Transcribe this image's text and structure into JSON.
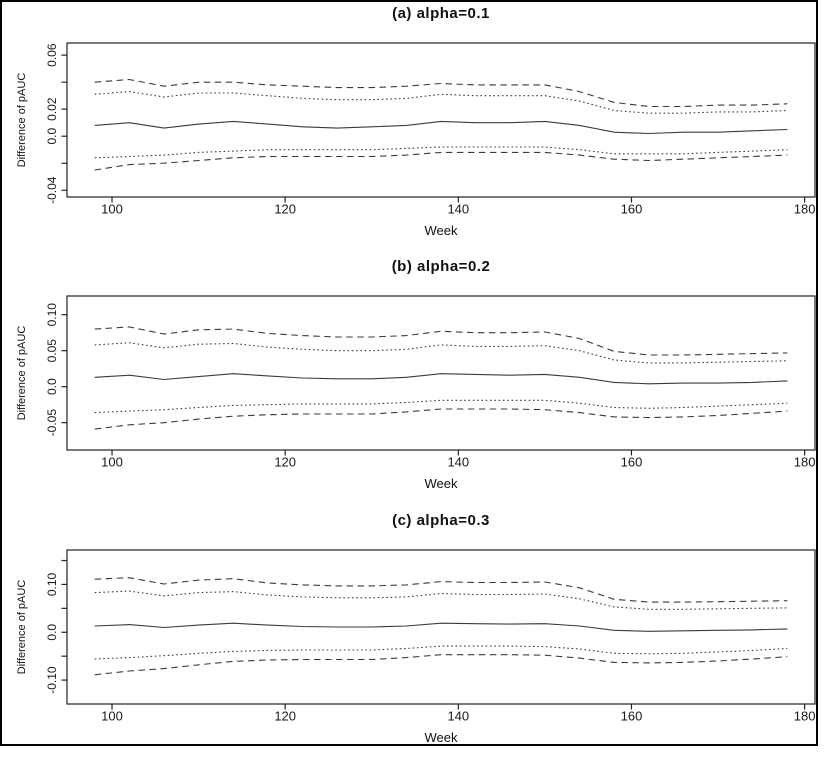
{
  "window": {
    "background": "#ffffff",
    "border_color": "#000000"
  },
  "figure": {
    "text_color": "#1a1a1a",
    "curve_color": "#3b3b3b",
    "axis_color": "#222222"
  },
  "chart_data": [
    {
      "type": "line",
      "title": "(a) alpha=0.1",
      "xlabel": "Week",
      "ylabel": "Difference of pAUC",
      "xlim": [
        94.8,
        181.2
      ],
      "ylim": [
        -0.045,
        0.069
      ],
      "xticks": [
        {
          "v": 100,
          "label": "100"
        },
        {
          "v": 120,
          "label": "120"
        },
        {
          "v": 140,
          "label": "140"
        },
        {
          "v": 160,
          "label": "160"
        },
        {
          "v": 180,
          "label": "180"
        }
      ],
      "yticks": [
        {
          "v": 0.06,
          "label": "0.06"
        },
        {
          "v": 0.04,
          "label": ""
        },
        {
          "v": 0.02,
          "label": "0.02"
        },
        {
          "v": 0.0,
          "label": "0.0"
        },
        {
          "v": -0.02,
          "label": ""
        },
        {
          "v": -0.04,
          "label": "-0.04"
        }
      ],
      "grid": false,
      "legend": "none",
      "x": [
        98,
        102,
        106,
        110,
        114,
        118,
        122,
        126,
        130,
        134,
        138,
        142,
        146,
        150,
        154,
        158,
        162,
        166,
        170,
        174,
        178
      ],
      "series": [
        {
          "name": "upper-dashed-band",
          "style": "dashed",
          "values": [
            0.04,
            0.042,
            0.037,
            0.04,
            0.04,
            0.038,
            0.037,
            0.036,
            0.036,
            0.037,
            0.039,
            0.038,
            0.038,
            0.038,
            0.033,
            0.025,
            0.022,
            0.022,
            0.023,
            0.023,
            0.024
          ]
        },
        {
          "name": "upper-dotted-band",
          "style": "dotted",
          "values": [
            0.031,
            0.033,
            0.029,
            0.032,
            0.032,
            0.03,
            0.028,
            0.027,
            0.027,
            0.028,
            0.031,
            0.03,
            0.03,
            0.03,
            0.026,
            0.019,
            0.017,
            0.017,
            0.018,
            0.018,
            0.019
          ]
        },
        {
          "name": "estimate",
          "style": "solid",
          "values": [
            0.008,
            0.01,
            0.006,
            0.009,
            0.011,
            0.009,
            0.007,
            0.006,
            0.007,
            0.008,
            0.011,
            0.01,
            0.01,
            0.011,
            0.008,
            0.003,
            0.002,
            0.003,
            0.003,
            0.004,
            0.005
          ]
        },
        {
          "name": "lower-dotted-band",
          "style": "dotted",
          "values": [
            -0.016,
            -0.015,
            -0.014,
            -0.012,
            -0.011,
            -0.01,
            -0.01,
            -0.01,
            -0.01,
            -0.009,
            -0.008,
            -0.008,
            -0.008,
            -0.008,
            -0.01,
            -0.013,
            -0.013,
            -0.013,
            -0.012,
            -0.011,
            -0.01
          ]
        },
        {
          "name": "lower-dashed-band",
          "style": "dashed",
          "values": [
            -0.025,
            -0.021,
            -0.02,
            -0.018,
            -0.016,
            -0.015,
            -0.015,
            -0.015,
            -0.015,
            -0.014,
            -0.012,
            -0.012,
            -0.012,
            -0.012,
            -0.014,
            -0.017,
            -0.018,
            -0.017,
            -0.016,
            -0.015,
            -0.014
          ]
        }
      ]
    },
    {
      "type": "line",
      "title": "(b) alpha=0.2",
      "xlabel": "Week",
      "ylabel": "Difference of pAUC",
      "xlim": [
        94.8,
        181.2
      ],
      "ylim": [
        -0.088,
        0.126
      ],
      "xticks": [
        {
          "v": 100,
          "label": "100"
        },
        {
          "v": 120,
          "label": "120"
        },
        {
          "v": 140,
          "label": "140"
        },
        {
          "v": 160,
          "label": "160"
        },
        {
          "v": 180,
          "label": "180"
        }
      ],
      "yticks": [
        {
          "v": 0.1,
          "label": "0.10"
        },
        {
          "v": 0.05,
          "label": "0.05"
        },
        {
          "v": 0.0,
          "label": "0.0"
        },
        {
          "v": -0.05,
          "label": "-0.05"
        }
      ],
      "grid": false,
      "legend": "none",
      "x": [
        98,
        102,
        106,
        110,
        114,
        118,
        122,
        126,
        130,
        134,
        138,
        142,
        146,
        150,
        154,
        158,
        162,
        166,
        170,
        174,
        178
      ],
      "series": [
        {
          "name": "upper-dashed-band",
          "style": "dashed",
          "values": [
            0.08,
            0.083,
            0.073,
            0.079,
            0.08,
            0.074,
            0.071,
            0.069,
            0.069,
            0.071,
            0.077,
            0.075,
            0.075,
            0.076,
            0.067,
            0.049,
            0.044,
            0.044,
            0.045,
            0.046,
            0.047
          ]
        },
        {
          "name": "upper-dotted-band",
          "style": "dotted",
          "values": [
            0.058,
            0.061,
            0.054,
            0.059,
            0.06,
            0.055,
            0.052,
            0.05,
            0.05,
            0.052,
            0.058,
            0.056,
            0.056,
            0.057,
            0.05,
            0.037,
            0.033,
            0.033,
            0.034,
            0.035,
            0.036
          ]
        },
        {
          "name": "estimate",
          "style": "solid",
          "values": [
            0.013,
            0.016,
            0.01,
            0.014,
            0.018,
            0.015,
            0.012,
            0.011,
            0.011,
            0.013,
            0.018,
            0.017,
            0.016,
            0.017,
            0.013,
            0.006,
            0.004,
            0.005,
            0.005,
            0.006,
            0.008
          ]
        },
        {
          "name": "lower-dotted-band",
          "style": "dotted",
          "values": [
            -0.036,
            -0.034,
            -0.032,
            -0.029,
            -0.026,
            -0.025,
            -0.024,
            -0.024,
            -0.024,
            -0.022,
            -0.019,
            -0.019,
            -0.019,
            -0.019,
            -0.023,
            -0.029,
            -0.03,
            -0.029,
            -0.027,
            -0.025,
            -0.023
          ]
        },
        {
          "name": "lower-dashed-band",
          "style": "dashed",
          "values": [
            -0.059,
            -0.053,
            -0.05,
            -0.045,
            -0.041,
            -0.039,
            -0.038,
            -0.038,
            -0.038,
            -0.035,
            -0.031,
            -0.031,
            -0.031,
            -0.032,
            -0.036,
            -0.042,
            -0.043,
            -0.042,
            -0.04,
            -0.037,
            -0.034
          ]
        }
      ]
    },
    {
      "type": "line",
      "title": "(c) alpha=0.3",
      "xlabel": "Week",
      "ylabel": "Difference of pAUC",
      "xlim": [
        94.8,
        181.2
      ],
      "ylim": [
        -0.15,
        0.172
      ],
      "xticks": [
        {
          "v": 100,
          "label": "100"
        },
        {
          "v": 120,
          "label": "120"
        },
        {
          "v": 140,
          "label": "140"
        },
        {
          "v": 160,
          "label": "160"
        },
        {
          "v": 180,
          "label": "180"
        }
      ],
      "yticks": [
        {
          "v": 0.15,
          "label": ""
        },
        {
          "v": 0.1,
          "label": "0.10"
        },
        {
          "v": 0.05,
          "label": ""
        },
        {
          "v": 0.0,
          "label": "0.0"
        },
        {
          "v": -0.05,
          "label": ""
        },
        {
          "v": -0.1,
          "label": "-0.10"
        }
      ],
      "grid": false,
      "legend": "none",
      "x": [
        98,
        102,
        106,
        110,
        114,
        118,
        122,
        126,
        130,
        134,
        138,
        142,
        146,
        150,
        154,
        158,
        162,
        166,
        170,
        174,
        178
      ],
      "series": [
        {
          "name": "upper-dashed-band",
          "style": "dashed",
          "values": [
            0.111,
            0.114,
            0.101,
            0.109,
            0.112,
            0.103,
            0.099,
            0.097,
            0.097,
            0.099,
            0.106,
            0.104,
            0.104,
            0.105,
            0.093,
            0.069,
            0.063,
            0.063,
            0.064,
            0.065,
            0.066
          ]
        },
        {
          "name": "upper-dotted-band",
          "style": "dotted",
          "values": [
            0.083,
            0.086,
            0.076,
            0.083,
            0.085,
            0.078,
            0.074,
            0.072,
            0.072,
            0.074,
            0.081,
            0.079,
            0.079,
            0.08,
            0.07,
            0.053,
            0.048,
            0.048,
            0.049,
            0.05,
            0.051
          ]
        },
        {
          "name": "estimate",
          "style": "solid",
          "values": [
            0.013,
            0.016,
            0.01,
            0.015,
            0.019,
            0.015,
            0.012,
            0.011,
            0.011,
            0.013,
            0.019,
            0.018,
            0.017,
            0.018,
            0.013,
            0.004,
            0.002,
            0.003,
            0.004,
            0.005,
            0.007
          ]
        },
        {
          "name": "lower-dotted-band",
          "style": "dotted",
          "values": [
            -0.056,
            -0.053,
            -0.049,
            -0.044,
            -0.04,
            -0.038,
            -0.037,
            -0.037,
            -0.037,
            -0.034,
            -0.029,
            -0.029,
            -0.029,
            -0.03,
            -0.035,
            -0.044,
            -0.045,
            -0.044,
            -0.041,
            -0.038,
            -0.034
          ]
        },
        {
          "name": "lower-dashed-band",
          "style": "dashed",
          "values": [
            -0.089,
            -0.081,
            -0.076,
            -0.068,
            -0.061,
            -0.058,
            -0.057,
            -0.057,
            -0.057,
            -0.053,
            -0.047,
            -0.047,
            -0.047,
            -0.048,
            -0.054,
            -0.063,
            -0.064,
            -0.063,
            -0.06,
            -0.056,
            -0.051
          ]
        }
      ]
    }
  ]
}
